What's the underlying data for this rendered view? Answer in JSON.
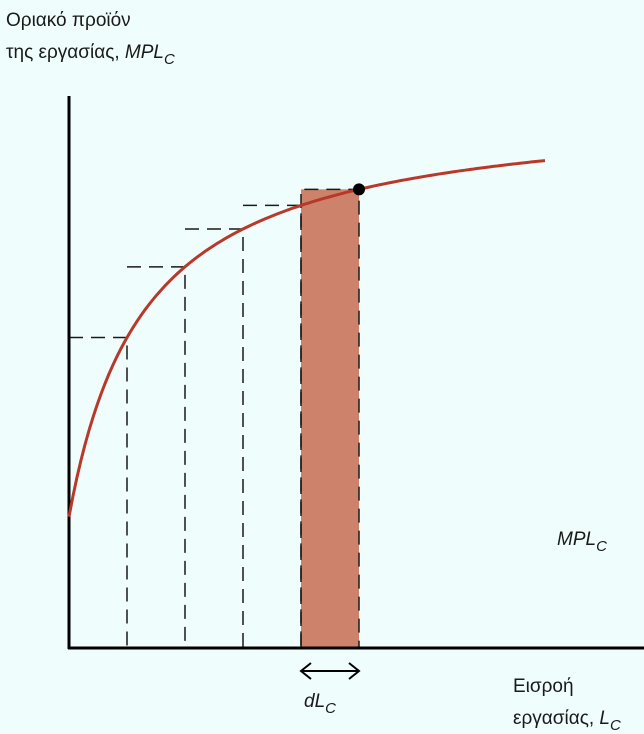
{
  "chart_data": {
    "type": "line",
    "ylabel": {
      "line1": "Οριακό προϊόν",
      "line2_text": "της εργασίας, ",
      "line2_var": "MPL",
      "line2_sub": "C"
    },
    "xlabel": {
      "line1": "Εισροή",
      "line2_text": "εργασίας, ",
      "line2_var": "L",
      "line2_sub": "C"
    },
    "curve_label": {
      "var": "MPL",
      "sub": "C"
    },
    "increment_label": {
      "var": "dL",
      "sub": "C"
    },
    "grid": false,
    "steps": [
      {
        "x0": 0,
        "x1": 1
      },
      {
        "x0": 1,
        "x1": 2
      },
      {
        "x0": 2,
        "x1": 3
      },
      {
        "x0": 3,
        "x1": 4
      }
    ],
    "highlighted_step": {
      "x0": 4,
      "x1": 5
    },
    "marked_point_x": 5,
    "colors": {
      "curve": "#b8392a",
      "shaded": "#cd836b",
      "axis": "#000000",
      "dashed": "#1a1a1a",
      "background": "#f0fdfd"
    }
  }
}
